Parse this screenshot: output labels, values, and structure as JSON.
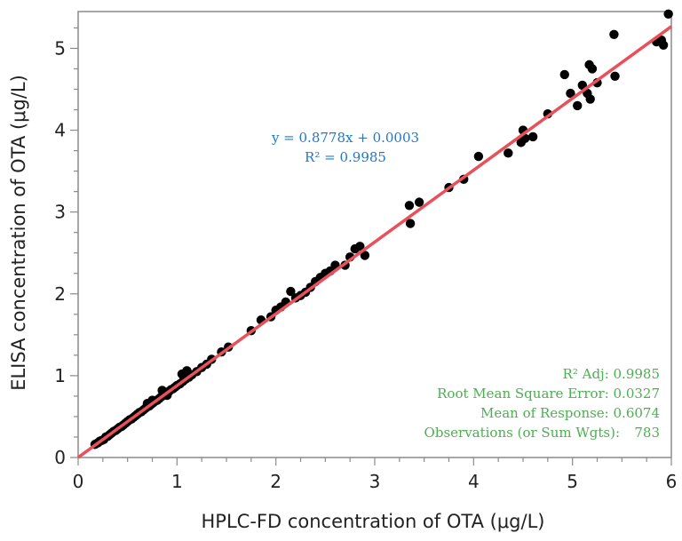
{
  "colors": {
    "points": "#000000",
    "fit_line": "#e8505b",
    "equation": "#1f78c8",
    "stats": "#4caf50",
    "frame": "#8a8a8a"
  },
  "equation": {
    "line1": "y = 0.8778x + 0.0003",
    "line2": "R² = 0.9985"
  },
  "stats": {
    "r2_adj": "R² Adj: 0.9985",
    "rmse": "Root Mean Square Error: 0.0327",
    "mean": "Mean of Response: 0.6074",
    "obs_label": "Observations (or Sum Wgts):",
    "obs_value": "783"
  },
  "chart_data": {
    "type": "scatter",
    "xlabel": "HPLC-FD concentration of OTA (μg/L)",
    "ylabel": "ELISA concentration of OTA (μg/L)",
    "xlim": [
      0,
      6
    ],
    "ylim": [
      0,
      5.45
    ],
    "xticks": [
      0,
      1,
      2,
      3,
      4,
      5,
      6
    ],
    "yticks": [
      0,
      1,
      2,
      3,
      4,
      5
    ],
    "grid": false,
    "fit": {
      "slope": 0.8778,
      "intercept": 0.0003
    },
    "points": [
      [
        0.17,
        0.16
      ],
      [
        0.2,
        0.18
      ],
      [
        0.22,
        0.2
      ],
      [
        0.24,
        0.21
      ],
      [
        0.26,
        0.22
      ],
      [
        0.28,
        0.25
      ],
      [
        0.3,
        0.26
      ],
      [
        0.32,
        0.28
      ],
      [
        0.34,
        0.3
      ],
      [
        0.36,
        0.32
      ],
      [
        0.38,
        0.33
      ],
      [
        0.4,
        0.35
      ],
      [
        0.42,
        0.37
      ],
      [
        0.44,
        0.38
      ],
      [
        0.46,
        0.4
      ],
      [
        0.48,
        0.42
      ],
      [
        0.5,
        0.44
      ],
      [
        0.52,
        0.46
      ],
      [
        0.54,
        0.47
      ],
      [
        0.56,
        0.49
      ],
      [
        0.58,
        0.51
      ],
      [
        0.6,
        0.53
      ],
      [
        0.62,
        0.55
      ],
      [
        0.64,
        0.56
      ],
      [
        0.66,
        0.58
      ],
      [
        0.68,
        0.6
      ],
      [
        0.7,
        0.62
      ],
      [
        0.72,
        0.63
      ],
      [
        0.74,
        0.65
      ],
      [
        0.76,
        0.67
      ],
      [
        0.78,
        0.69
      ],
      [
        0.8,
        0.7
      ],
      [
        0.82,
        0.72
      ],
      [
        0.84,
        0.74
      ],
      [
        0.86,
        0.76
      ],
      [
        0.88,
        0.77
      ],
      [
        0.9,
        0.79
      ],
      [
        0.92,
        0.81
      ],
      [
        0.94,
        0.83
      ],
      [
        0.96,
        0.84
      ],
      [
        0.98,
        0.86
      ],
      [
        1.0,
        0.88
      ],
      [
        1.03,
        0.9
      ],
      [
        1.06,
        0.93
      ],
      [
        1.09,
        0.96
      ],
      [
        1.12,
        0.98
      ],
      [
        1.15,
        1.01
      ],
      [
        1.2,
        1.05
      ],
      [
        1.25,
        1.1
      ],
      [
        1.3,
        1.14
      ],
      [
        0.85,
        0.82
      ],
      [
        0.9,
        0.76
      ],
      [
        1.05,
        1.02
      ],
      [
        1.1,
        1.06
      ],
      [
        0.7,
        0.66
      ],
      [
        0.75,
        0.7
      ],
      [
        1.35,
        1.2
      ],
      [
        1.45,
        1.29
      ],
      [
        1.52,
        1.35
      ],
      [
        1.75,
        1.55
      ],
      [
        1.85,
        1.68
      ],
      [
        1.95,
        1.72
      ],
      [
        2.0,
        1.8
      ],
      [
        2.05,
        1.84
      ],
      [
        2.1,
        1.9
      ],
      [
        2.15,
        2.03
      ],
      [
        2.2,
        1.95
      ],
      [
        2.25,
        1.98
      ],
      [
        2.3,
        2.02
      ],
      [
        2.35,
        2.08
      ],
      [
        2.4,
        2.15
      ],
      [
        2.45,
        2.2
      ],
      [
        2.5,
        2.25
      ],
      [
        2.55,
        2.28
      ],
      [
        2.6,
        2.35
      ],
      [
        2.7,
        2.35
      ],
      [
        2.75,
        2.45
      ],
      [
        2.8,
        2.55
      ],
      [
        2.85,
        2.58
      ],
      [
        2.9,
        2.47
      ],
      [
        3.35,
        3.08
      ],
      [
        3.36,
        2.86
      ],
      [
        3.45,
        3.12
      ],
      [
        3.75,
        3.3
      ],
      [
        3.9,
        3.4
      ],
      [
        4.05,
        3.68
      ],
      [
        4.35,
        3.72
      ],
      [
        4.48,
        3.85
      ],
      [
        4.5,
        4.0
      ],
      [
        4.52,
        3.9
      ],
      [
        4.6,
        3.92
      ],
      [
        4.75,
        4.2
      ],
      [
        4.92,
        4.68
      ],
      [
        4.98,
        4.45
      ],
      [
        5.05,
        4.3
      ],
      [
        5.1,
        4.55
      ],
      [
        5.15,
        4.45
      ],
      [
        5.17,
        4.8
      ],
      [
        5.18,
        4.38
      ],
      [
        5.2,
        4.75
      ],
      [
        5.25,
        4.58
      ],
      [
        5.42,
        5.17
      ],
      [
        5.43,
        4.66
      ],
      [
        5.85,
        5.08
      ],
      [
        5.9,
        5.1
      ],
      [
        5.92,
        5.04
      ],
      [
        5.97,
        5.42
      ]
    ]
  }
}
